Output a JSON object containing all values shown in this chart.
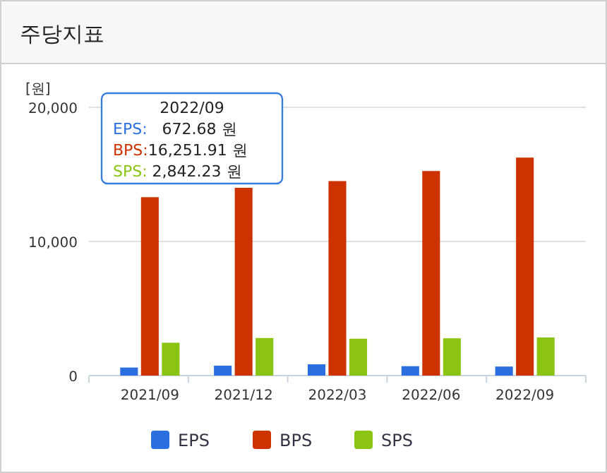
{
  "chart_data": {
    "type": "bar",
    "title": "주당지표",
    "ylabel": "[원]",
    "categories": [
      "2021/09",
      "2021/12",
      "2022/03",
      "2022/06",
      "2022/09"
    ],
    "series": [
      {
        "name": "EPS",
        "color": "#2a6ee0",
        "values": [
          600,
          740,
          840,
          700,
          672.68
        ]
      },
      {
        "name": "BPS",
        "color": "#cc3300",
        "values": [
          13300,
          14000,
          14500,
          15250,
          16251.91
        ]
      },
      {
        "name": "SPS",
        "color": "#8cc414",
        "values": [
          2450,
          2800,
          2750,
          2780,
          2842.23
        ]
      }
    ],
    "ylim": [
      0,
      20000
    ],
    "yticks": [
      {
        "value": 0,
        "label": "0"
      },
      {
        "value": 10000,
        "label": "10,000"
      },
      {
        "value": 20000,
        "label": "20,000"
      }
    ],
    "grid": "y",
    "legend": "bottom",
    "annotations": [
      "2022/09",
      "EPS:   672.68 원",
      "BPS:16,251.91 원",
      "SPS: 2,842.23 원"
    ]
  }
}
